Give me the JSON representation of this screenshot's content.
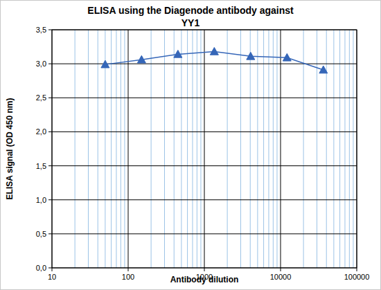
{
  "chart_data": {
    "type": "line",
    "title": "ELISA using the Diagenode antibody against\nYY1",
    "x_label": "Antibody dilution",
    "y_label": "ELISA signal (OD 450 nm)",
    "x": [
      50,
      150,
      450,
      1350,
      4050,
      12150,
      36450
    ],
    "values": [
      2.99,
      3.06,
      3.14,
      3.18,
      3.11,
      3.09,
      2.91
    ],
    "color": "#3566b8",
    "marker": "triangle",
    "log": "x",
    "grid": true,
    "xlim": [
      10,
      100000
    ],
    "xticks": [
      10,
      100,
      1000,
      10000,
      100000
    ],
    "ylim": [
      0,
      3.5
    ],
    "yticks": [
      {
        "value": 0,
        "label": "0,0"
      },
      {
        "value": 0.5,
        "label": "0,5"
      },
      {
        "value": 1,
        "label": "1,0"
      },
      {
        "value": 1.5,
        "label": "1,5"
      },
      {
        "value": 2,
        "label": "2,0"
      },
      {
        "value": 2.5,
        "label": "2,5"
      },
      {
        "value": 3,
        "label": "3,0"
      },
      {
        "value": 3.5,
        "label": "3,5"
      }
    ]
  }
}
